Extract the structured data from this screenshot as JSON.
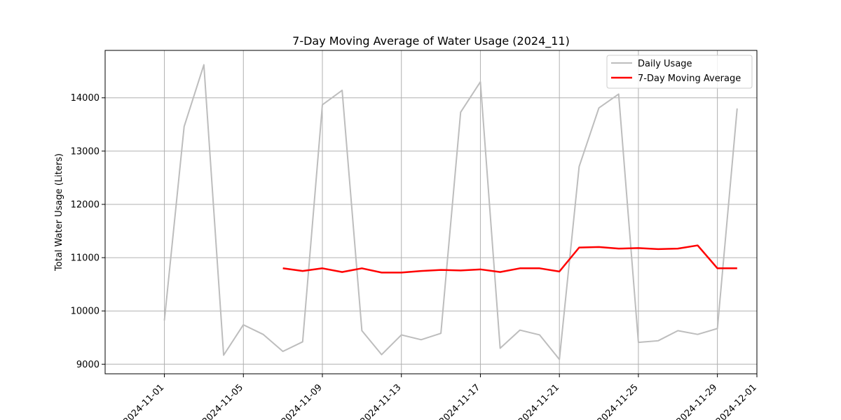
{
  "chart_data": {
    "type": "line",
    "title": "7-Day Moving Average of Water Usage (2024_11)",
    "xlabel": "",
    "ylabel": "Total Water Usage (Liters)",
    "grid": true,
    "legend_position": "top-right",
    "xlim": [
      "2024-10-29",
      "2024-12-01"
    ],
    "ylim": [
      8820,
      14890
    ],
    "x_ticks": [
      "2024-11-01",
      "2024-11-05",
      "2024-11-09",
      "2024-11-13",
      "2024-11-17",
      "2024-11-21",
      "2024-11-25",
      "2024-11-29",
      "2024-12-01"
    ],
    "y_ticks": [
      9000,
      10000,
      11000,
      12000,
      13000,
      14000
    ],
    "x": [
      "2024-11-01",
      "2024-11-02",
      "2024-11-03",
      "2024-11-04",
      "2024-11-05",
      "2024-11-06",
      "2024-11-07",
      "2024-11-08",
      "2024-11-09",
      "2024-11-10",
      "2024-11-11",
      "2024-11-12",
      "2024-11-13",
      "2024-11-14",
      "2024-11-15",
      "2024-11-16",
      "2024-11-17",
      "2024-11-18",
      "2024-11-19",
      "2024-11-20",
      "2024-11-21",
      "2024-11-22",
      "2024-11-23",
      "2024-11-24",
      "2024-11-25",
      "2024-11-26",
      "2024-11-27",
      "2024-11-28",
      "2024-11-29",
      "2024-11-30"
    ],
    "series": [
      {
        "name": "Daily Usage",
        "color": "#bdbdbd",
        "values": [
          9820,
          13460,
          14620,
          9170,
          9740,
          9560,
          9240,
          9420,
          13870,
          14140,
          9630,
          9180,
          9550,
          9460,
          9580,
          13730,
          14300,
          9300,
          9640,
          9550,
          9090,
          12710,
          13810,
          14070,
          9410,
          9440,
          9630,
          9560,
          9670,
          13800
        ]
      },
      {
        "name": "7-Day Moving Average",
        "color": "#ff0000",
        "values": [
          null,
          null,
          null,
          null,
          null,
          null,
          10800,
          10750,
          10800,
          10730,
          10800,
          10720,
          10720,
          10750,
          10770,
          10760,
          10780,
          10730,
          10800,
          10800,
          10740,
          11190,
          11200,
          11170,
          11180,
          11160,
          11170,
          11230,
          10800,
          10800
        ]
      }
    ]
  }
}
